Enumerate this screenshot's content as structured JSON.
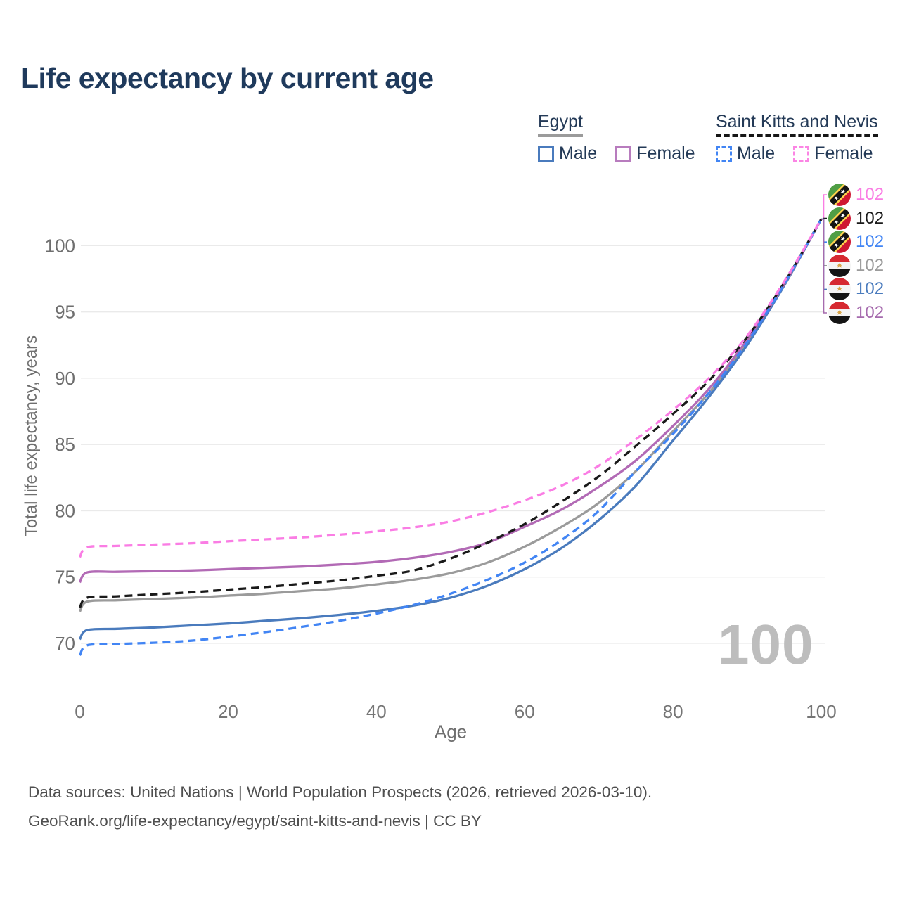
{
  "title": "Life expectancy by current age",
  "watermark": "100",
  "legend": {
    "groups": [
      {
        "label": "Egypt",
        "underline": {
          "style": "solid",
          "color": "#9b9b9b"
        },
        "items": [
          {
            "label": "Male",
            "color": "#4a7bbd",
            "dashed": false
          },
          {
            "label": "Female",
            "color": "#b87cbe",
            "dashed": false
          }
        ]
      },
      {
        "label": "Saint Kitts and Nevis",
        "underline": {
          "style": "dashed",
          "color": "#161616"
        },
        "items": [
          {
            "label": "Male",
            "color": "#4285f4",
            "dashed": true
          },
          {
            "label": "Female",
            "color": "#fb85e4",
            "dashed": true
          }
        ]
      }
    ]
  },
  "end_labels": [
    {
      "flag": "saint-kitts-and-nevis",
      "value": "102",
      "color": "#fa7de4"
    },
    {
      "flag": "saint-kitts-and-nevis",
      "value": "102",
      "color": "#1a1a1a"
    },
    {
      "flag": "saint-kitts-and-nevis",
      "value": "102",
      "color": "#4285f4"
    },
    {
      "flag": "egypt",
      "value": "102",
      "color": "#9b9b9b"
    },
    {
      "flag": "egypt",
      "value": "102",
      "color": "#4a7bbd"
    },
    {
      "flag": "egypt",
      "value": "102",
      "color": "#a66bae"
    }
  ],
  "footer": {
    "line1": "Data sources: United Nations | World Population Prospects (2026, retrieved 2026-03-10).",
    "line2": "GeoRank.org/life-expectancy/egypt/saint-kitts-and-nevis | CC BY"
  },
  "chart_data": {
    "type": "line",
    "title": "Life expectancy by current age",
    "xlabel": "Age",
    "ylabel": "Total life expectancy, years",
    "xlim": [
      0,
      100
    ],
    "ylim": [
      67,
      104
    ],
    "x_ticks": [
      0,
      20,
      40,
      60,
      80,
      100
    ],
    "y_ticks": [
      70,
      75,
      80,
      85,
      90,
      95,
      100
    ],
    "grid": "horizontal",
    "legend_position": "top-right",
    "x": [
      0,
      1,
      5,
      10,
      15,
      20,
      25,
      30,
      35,
      40,
      45,
      50,
      55,
      60,
      65,
      70,
      75,
      80,
      85,
      90,
      95,
      100
    ],
    "series": [
      {
        "id": "egypt-male",
        "name": "Egypt Male",
        "color": "#4a7bbd",
        "dashed": false,
        "values": [
          70.3,
          71.0,
          71.1,
          71.2,
          71.35,
          71.5,
          71.7,
          71.9,
          72.15,
          72.45,
          72.85,
          73.45,
          74.35,
          75.6,
          77.2,
          79.3,
          81.9,
          85.3,
          88.7,
          92.5,
          97.0,
          102
        ]
      },
      {
        "id": "egypt-female",
        "name": "Egypt Female",
        "color": "#b26ab5",
        "dashed": false,
        "values": [
          74.6,
          75.35,
          75.4,
          75.45,
          75.5,
          75.6,
          75.7,
          75.8,
          75.95,
          76.15,
          76.45,
          76.9,
          77.6,
          78.8,
          80.1,
          81.8,
          83.8,
          86.4,
          89.3,
          92.9,
          97.1,
          102
        ]
      },
      {
        "id": "egypt-total",
        "name": "Egypt Total",
        "color": "#9b9b9b",
        "dashed": false,
        "values": [
          72.4,
          73.15,
          73.25,
          73.35,
          73.45,
          73.6,
          73.75,
          73.95,
          74.15,
          74.45,
          74.8,
          75.3,
          76.1,
          77.3,
          78.8,
          80.6,
          83.0,
          86.0,
          89.0,
          92.7,
          97.0,
          102
        ]
      },
      {
        "id": "saint-kitts-and-nevis-male",
        "name": "Saint Kitts and Nevis Male",
        "color": "#4285f4",
        "dashed": true,
        "values": [
          69.1,
          69.85,
          69.95,
          70.05,
          70.2,
          70.5,
          70.85,
          71.25,
          71.7,
          72.25,
          72.9,
          73.75,
          74.8,
          76.1,
          77.8,
          80.0,
          83.0,
          85.8,
          89.0,
          92.7,
          97.1,
          102
        ]
      },
      {
        "id": "saint-kitts-and-nevis-female",
        "name": "Saint Kitts and Nevis Female",
        "color": "#fa7de4",
        "dashed": true,
        "values": [
          76.5,
          77.25,
          77.35,
          77.45,
          77.55,
          77.7,
          77.85,
          78.0,
          78.2,
          78.45,
          78.75,
          79.2,
          79.9,
          80.8,
          81.9,
          83.4,
          85.4,
          87.6,
          90.1,
          93.2,
          97.3,
          102
        ]
      },
      {
        "id": "saint-kitts-and-nevis-total",
        "name": "Saint Kitts and Nevis Total",
        "color": "#1a1a1a",
        "dashed": true,
        "values": [
          72.7,
          73.45,
          73.55,
          73.7,
          73.85,
          74.05,
          74.25,
          74.5,
          74.75,
          75.1,
          75.5,
          76.4,
          77.6,
          79.0,
          80.7,
          82.6,
          84.9,
          87.3,
          89.9,
          93.1,
          97.2,
          102
        ]
      }
    ]
  }
}
